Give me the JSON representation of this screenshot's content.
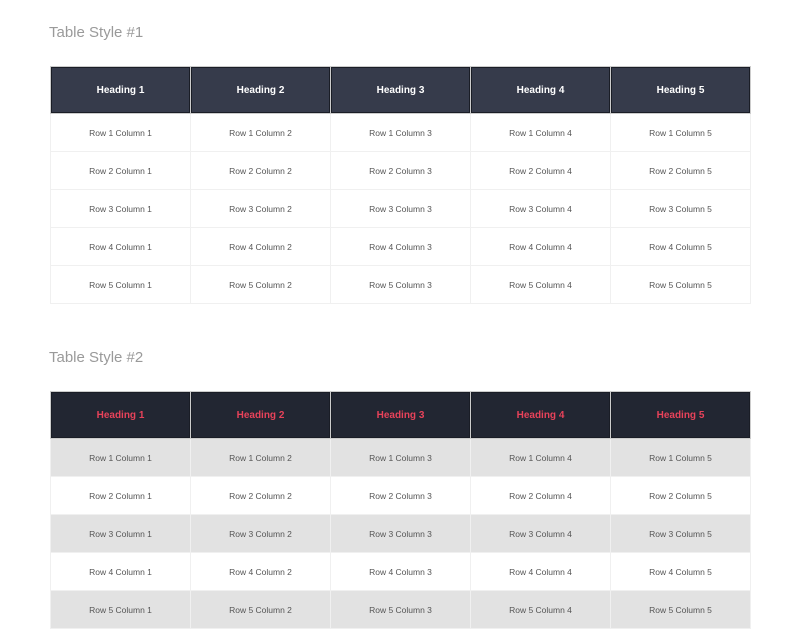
{
  "tables": [
    {
      "title": "Table Style #1",
      "header_bg": "#363b4b",
      "header_text_color": "#ffffff",
      "headers": [
        "Heading 1",
        "Heading 2",
        "Heading 3",
        "Heading 4",
        "Heading 5"
      ],
      "rows": [
        [
          "Row 1 Column 1",
          "Row 1 Column 2",
          "Row 1 Column 3",
          "Row 1 Column 4",
          "Row 1 Column 5"
        ],
        [
          "Row 2 Column 1",
          "Row 2 Column 2",
          "Row 2 Column 3",
          "Row 2 Column 4",
          "Row 2 Column 5"
        ],
        [
          "Row 3 Column 1",
          "Row 3 Column 2",
          "Row 3 Column 3",
          "Row 3 Column 4",
          "Row 3 Column 5"
        ],
        [
          "Row 4 Column 1",
          "Row 4 Column 2",
          "Row 4 Column 3",
          "Row 4 Column 4",
          "Row 4 Column 5"
        ],
        [
          "Row 5 Column 1",
          "Row 5 Column 2",
          "Row 5 Column 3",
          "Row 5 Column 4",
          "Row 5 Column 5"
        ]
      ]
    },
    {
      "title": "Table Style #2",
      "header_bg": "#222632",
      "header_text_color": "#e8425a",
      "stripe_color": "#e2e2e2",
      "headers": [
        "Heading 1",
        "Heading 2",
        "Heading 3",
        "Heading 4",
        "Heading 5"
      ],
      "rows": [
        [
          "Row 1 Column 1",
          "Row 1 Column 2",
          "Row 1 Column 3",
          "Row 1 Column 4",
          "Row 1 Column 5"
        ],
        [
          "Row 2 Column 1",
          "Row 2 Column 2",
          "Row 2 Column 3",
          "Row 2 Column 4",
          "Row 2 Column 5"
        ],
        [
          "Row 3 Column 1",
          "Row 3 Column 2",
          "Row 3 Column 3",
          "Row 3 Column 4",
          "Row 3 Column 5"
        ],
        [
          "Row 4 Column 1",
          "Row 4 Column 2",
          "Row 4 Column 3",
          "Row 4 Column 4",
          "Row 4 Column 5"
        ],
        [
          "Row 5 Column 1",
          "Row 5 Column 2",
          "Row 5 Column 3",
          "Row 5 Column 4",
          "Row 5 Column 5"
        ]
      ]
    }
  ]
}
